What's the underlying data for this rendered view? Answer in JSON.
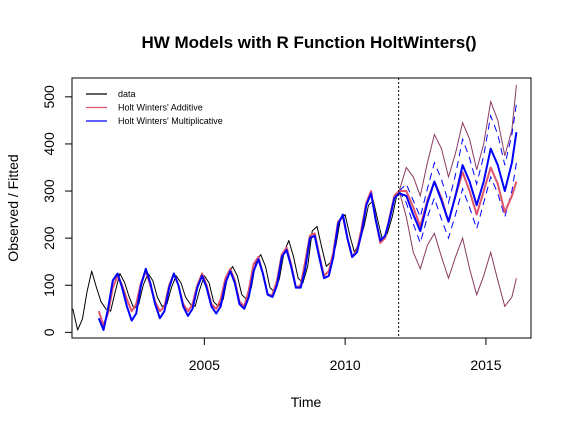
{
  "chart_data": {
    "type": "line",
    "title": "HW Models with R Function HoltWinters()",
    "xlabel": "Time",
    "ylabel": "Observed / Fitted",
    "xlim": [
      2000.3,
      2016.6
    ],
    "ylim": [
      -12,
      540
    ],
    "x_ticks": [
      2005,
      2010,
      2015
    ],
    "y_ticks": [
      0,
      100,
      200,
      300,
      400,
      500
    ],
    "forecast_start": 2011.9,
    "legend": {
      "placement": "top-left",
      "entries": [
        {
          "label": "data",
          "color": "#000000"
        },
        {
          "label": "Holt Winters' Additive",
          "color": "#df536b"
        },
        {
          "label": "Holt Winters' Multiplicative",
          "color": "#0000ff"
        }
      ]
    },
    "series": [
      {
        "name": "data",
        "color": "#000000",
        "x": [
          2000.33,
          2000.5,
          2000.67,
          2000.83,
          2001.0,
          2001.17,
          2001.33,
          2001.5,
          2001.67,
          2001.83,
          2002.0,
          2002.17,
          2002.33,
          2002.5,
          2002.67,
          2002.83,
          2003.0,
          2003.17,
          2003.33,
          2003.5,
          2003.67,
          2003.83,
          2004.0,
          2004.17,
          2004.33,
          2004.5,
          2004.67,
          2004.83,
          2005.0,
          2005.17,
          2005.33,
          2005.5,
          2005.67,
          2005.83,
          2006.0,
          2006.17,
          2006.33,
          2006.5,
          2006.67,
          2006.83,
          2007.0,
          2007.17,
          2007.33,
          2007.5,
          2007.67,
          2007.83,
          2008.0,
          2008.17,
          2008.33,
          2008.5,
          2008.67,
          2008.83,
          2009.0,
          2009.17,
          2009.33,
          2009.5,
          2009.67,
          2009.83,
          2010.0,
          2010.17,
          2010.33,
          2010.5,
          2010.67,
          2010.83,
          2011.0,
          2011.17,
          2011.33,
          2011.5,
          2011.67,
          2011.83,
          2011.92
        ],
        "y": [
          50,
          5,
          28,
          85,
          130,
          95,
          65,
          50,
          45,
          85,
          125,
          105,
          75,
          50,
          60,
          100,
          125,
          110,
          75,
          55,
          60,
          95,
          120,
          105,
          75,
          60,
          55,
          90,
          120,
          105,
          65,
          55,
          70,
          120,
          140,
          120,
          80,
          70,
          95,
          150,
          165,
          140,
          95,
          85,
          115,
          170,
          195,
          160,
          115,
          105,
          140,
          215,
          225,
          180,
          140,
          150,
          185,
          240,
          250,
          205,
          170,
          190,
          225,
          270,
          280,
          235,
          195,
          210,
          245,
          290,
          300
        ]
      },
      {
        "name": "Holt Winters' Additive",
        "color": "#df536b",
        "x": [
          2001.25,
          2001.42,
          2001.58,
          2001.75,
          2001.92,
          2002.08,
          2002.25,
          2002.42,
          2002.58,
          2002.75,
          2002.92,
          2003.08,
          2003.25,
          2003.42,
          2003.58,
          2003.75,
          2003.92,
          2004.08,
          2004.25,
          2004.42,
          2004.58,
          2004.75,
          2004.92,
          2005.08,
          2005.25,
          2005.42,
          2005.58,
          2005.75,
          2005.92,
          2006.08,
          2006.25,
          2006.42,
          2006.58,
          2006.75,
          2006.92,
          2007.08,
          2007.25,
          2007.42,
          2007.58,
          2007.75,
          2007.92,
          2008.08,
          2008.25,
          2008.42,
          2008.58,
          2008.75,
          2008.92,
          2009.08,
          2009.25,
          2009.42,
          2009.58,
          2009.75,
          2009.92,
          2010.08,
          2010.25,
          2010.42,
          2010.58,
          2010.75,
          2010.92,
          2011.08,
          2011.25,
          2011.42,
          2011.58,
          2011.75,
          2011.92,
          2012.17,
          2012.42,
          2012.67,
          2012.92,
          2013.17,
          2013.42,
          2013.67,
          2013.92,
          2014.17,
          2014.42,
          2014.67,
          2014.92,
          2015.17,
          2015.42,
          2015.67,
          2015.92,
          2016.08
        ],
        "y": [
          45,
          15,
          40,
          95,
          120,
          100,
          70,
          45,
          60,
          105,
          130,
          100,
          65,
          45,
          55,
          100,
          125,
          100,
          60,
          45,
          60,
          100,
          125,
          100,
          60,
          50,
          70,
          115,
          135,
          110,
          65,
          55,
          90,
          145,
          160,
          125,
          80,
          80,
          110,
          165,
          180,
          145,
          95,
          100,
          150,
          205,
          210,
          165,
          120,
          130,
          170,
          235,
          245,
          200,
          160,
          175,
          220,
          275,
          300,
          240,
          190,
          200,
          245,
          290,
          300,
          300,
          265,
          225,
          280,
          320,
          285,
          235,
          290,
          340,
          300,
          250,
          300,
          350,
          315,
          255,
          290,
          320
        ]
      },
      {
        "name": "Holt Winters' Multiplicative",
        "color": "#0000ff",
        "x": [
          2001.25,
          2001.42,
          2001.58,
          2001.75,
          2001.92,
          2002.08,
          2002.25,
          2002.42,
          2002.58,
          2002.75,
          2002.92,
          2003.08,
          2003.25,
          2003.42,
          2003.58,
          2003.75,
          2003.92,
          2004.08,
          2004.25,
          2004.42,
          2004.58,
          2004.75,
          2004.92,
          2005.08,
          2005.25,
          2005.42,
          2005.58,
          2005.75,
          2005.92,
          2006.08,
          2006.25,
          2006.42,
          2006.58,
          2006.75,
          2006.92,
          2007.08,
          2007.25,
          2007.42,
          2007.58,
          2007.75,
          2007.92,
          2008.08,
          2008.25,
          2008.42,
          2008.58,
          2008.75,
          2008.92,
          2009.08,
          2009.25,
          2009.42,
          2009.58,
          2009.75,
          2009.92,
          2010.08,
          2010.25,
          2010.42,
          2010.58,
          2010.75,
          2010.92,
          2011.08,
          2011.25,
          2011.42,
          2011.58,
          2011.75,
          2011.92,
          2012.17,
          2012.42,
          2012.67,
          2012.92,
          2013.17,
          2013.42,
          2013.67,
          2013.92,
          2014.17,
          2014.42,
          2014.67,
          2014.92,
          2015.17,
          2015.42,
          2015.67,
          2015.92,
          2016.08
        ],
        "y": [
          30,
          5,
          50,
          110,
          125,
          95,
          55,
          25,
          40,
          100,
          135,
          105,
          60,
          30,
          45,
          95,
          125,
          100,
          55,
          35,
          50,
          95,
          120,
          95,
          55,
          40,
          55,
          105,
          130,
          105,
          60,
          50,
          75,
          130,
          155,
          125,
          80,
          75,
          100,
          160,
          175,
          140,
          95,
          95,
          135,
          200,
          205,
          160,
          115,
          120,
          160,
          230,
          250,
          200,
          160,
          170,
          210,
          270,
          295,
          240,
          195,
          205,
          240,
          285,
          295,
          290,
          250,
          215,
          275,
          320,
          280,
          235,
          290,
          355,
          320,
          270,
          320,
          390,
          355,
          300,
          360,
          425
        ]
      }
    ],
    "bands": [
      {
        "name": "additive_interval",
        "color": "#8b3a62",
        "style": "solid",
        "x": [
          2011.92,
          2012.17,
          2012.42,
          2012.67,
          2012.92,
          2013.17,
          2013.42,
          2013.67,
          2013.92,
          2014.17,
          2014.42,
          2014.67,
          2014.92,
          2015.17,
          2015.42,
          2015.67,
          2015.92,
          2016.08
        ],
        "upper": [
          300,
          350,
          330,
          290,
          360,
          420,
          390,
          330,
          380,
          445,
          410,
          345,
          400,
          490,
          450,
          375,
          430,
          525
        ],
        "lower": [
          300,
          245,
          170,
          135,
          185,
          210,
          160,
          115,
          160,
          200,
          135,
          80,
          120,
          170,
          110,
          55,
          75,
          115
        ]
      },
      {
        "name": "multiplicative_interval",
        "color": "#0000ff",
        "style": "dashed",
        "x": [
          2011.92,
          2012.17,
          2012.42,
          2012.67,
          2012.92,
          2013.17,
          2013.42,
          2013.67,
          2013.92,
          2014.17,
          2014.42,
          2014.67,
          2014.92,
          2015.17,
          2015.42,
          2015.67,
          2015.92,
          2016.08
        ],
        "upper": [
          300,
          315,
          280,
          245,
          305,
          360,
          325,
          275,
          335,
          410,
          370,
          315,
          375,
          460,
          420,
          355,
          420,
          485
        ],
        "lower": [
          300,
          275,
          230,
          190,
          245,
          285,
          240,
          200,
          250,
          305,
          265,
          220,
          275,
          330,
          295,
          245,
          300,
          360
        ]
      }
    ]
  }
}
